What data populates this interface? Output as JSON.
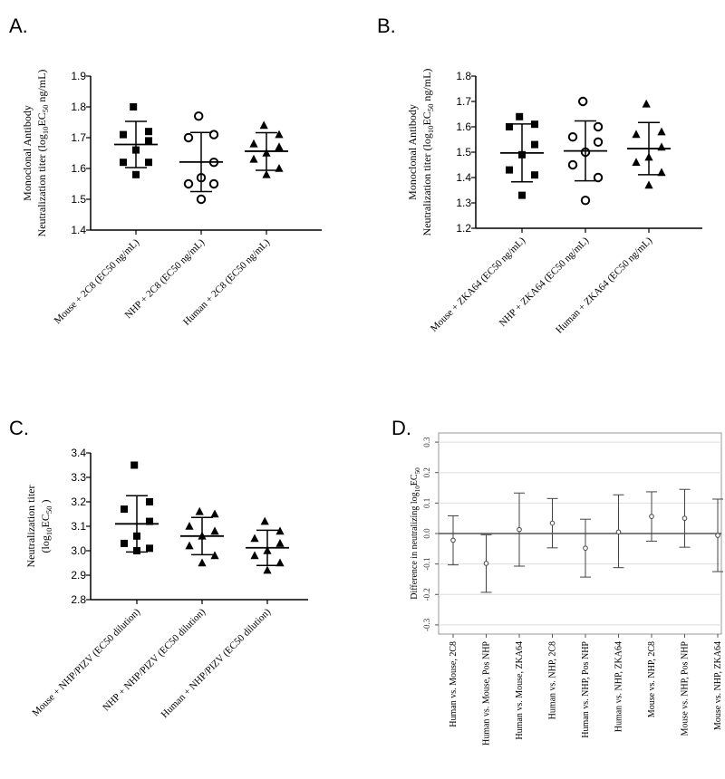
{
  "chart_data": [
    {
      "panel": "A.",
      "type": "scatter",
      "ylabel_lines": [
        "Monoclonal Antibody",
        "Neutralization titer (log10EC50 ng/mL)"
      ],
      "ylim": [
        1.4,
        1.9
      ],
      "yticks": [
        "1.4",
        "1.5",
        "1.6",
        "1.7",
        "1.8",
        "1.9"
      ],
      "categories": [
        "Mouse + 2C8 (EC50 ng/mL)",
        "NHP + 2C8 (EC50 ng/mL)",
        "Human + 2C8 (EC50 ng/mL)"
      ],
      "groups": [
        {
          "marker": "square",
          "filled": true,
          "points": [
            1.8,
            1.72,
            1.71,
            1.69,
            1.66,
            1.62,
            1.62,
            1.58
          ],
          "mean": 1.678,
          "sd_low": 1.603,
          "sd_high": 1.753
        },
        {
          "marker": "circle",
          "filled": false,
          "points": [
            1.77,
            1.71,
            1.7,
            1.62,
            1.57,
            1.55,
            1.55,
            1.5
          ],
          "mean": 1.621,
          "sd_low": 1.525,
          "sd_high": 1.717
        },
        {
          "marker": "triangle",
          "filled": true,
          "points": [
            1.74,
            1.71,
            1.68,
            1.67,
            1.65,
            1.63,
            1.6,
            1.58
          ],
          "mean": 1.656,
          "sd_low": 1.594,
          "sd_high": 1.716
        }
      ]
    },
    {
      "panel": "B.",
      "type": "scatter",
      "ylabel_lines": [
        "Monoclonal Antibody",
        "Neutralization titer (log10EC50 ng/mL)"
      ],
      "ylim": [
        1.2,
        1.8
      ],
      "yticks": [
        "1.2",
        "1.3",
        "1.4",
        "1.5",
        "1.6",
        "1.7",
        "1.8"
      ],
      "categories": [
        "Mouse + ZKA64 (EC50 ng/mL)",
        "NHP + ZKA64 (EC50 ng/mL)",
        "Human + ZKA64 (EC50 ng/mL)"
      ],
      "groups": [
        {
          "marker": "square",
          "filled": true,
          "points": [
            1.64,
            1.61,
            1.6,
            1.53,
            1.49,
            1.43,
            1.41,
            1.33
          ],
          "mean": 1.497,
          "sd_low": 1.383,
          "sd_high": 1.611
        },
        {
          "marker": "circle",
          "filled": false,
          "points": [
            1.7,
            1.6,
            1.56,
            1.54,
            1.5,
            1.45,
            1.4,
            1.31
          ],
          "mean": 1.505,
          "sd_low": 1.387,
          "sd_high": 1.623
        },
        {
          "marker": "triangle",
          "filled": true,
          "points": [
            1.69,
            1.58,
            1.57,
            1.52,
            1.48,
            1.46,
            1.42,
            1.37
          ],
          "mean": 1.514,
          "sd_low": 1.411,
          "sd_high": 1.617
        }
      ]
    },
    {
      "panel": "C.",
      "type": "scatter",
      "ylabel_lines": [
        "Neutralization titer",
        "(log10EC50 )"
      ],
      "ylim": [
        2.8,
        3.4
      ],
      "yticks": [
        "2.8",
        "2.9",
        "3.0",
        "3.1",
        "3.2",
        "3.3",
        "3.4"
      ],
      "categories": [
        "Mouse + NHP/PIZV (EC50 dilution)",
        "NHP + NHP/PIZV (EC50 dilution)",
        "Human + NHP/PIZV (EC50 dilution)"
      ],
      "groups": [
        {
          "marker": "square",
          "filled": true,
          "points": [
            3.35,
            3.2,
            3.17,
            3.12,
            3.06,
            3.03,
            3.01,
            3.0
          ],
          "mean": 3.11,
          "sd_low": 2.995,
          "sd_high": 3.225
        },
        {
          "marker": "triangle",
          "filled": true,
          "points": [
            3.16,
            3.15,
            3.1,
            3.08,
            3.06,
            3.02,
            2.98,
            2.95
          ],
          "mean": 3.06,
          "sd_low": 2.984,
          "sd_high": 3.136
        },
        {
          "marker": "triangle",
          "filled": true,
          "points": [
            3.12,
            3.08,
            3.05,
            3.03,
            3.0,
            2.98,
            2.95,
            2.92
          ],
          "mean": 3.012,
          "sd_low": 2.94,
          "sd_high": 3.084
        }
      ]
    },
    {
      "panel": "D.",
      "type": "errorbar",
      "ylabel": "Difference in neutralizing log10EC50",
      "ylim": [
        -0.3,
        0.3
      ],
      "yticks": [
        "-0.3",
        "-0.2",
        "-0.1",
        "0.0",
        "0.1",
        "0.2",
        "0.3"
      ],
      "reference_line": 0,
      "categories": [
        "Human vs. Mouse, 2C8",
        "Human vs. Mouse, Pos NHP",
        "Human vs. Mouse, ZKA64",
        "Human vs. NHP, 2C8",
        "Human vs. NHP, Pos NHP",
        "Human vs. NHP, ZKA64",
        "Mouse vs. NHP, 2C8",
        "Mouse vs. NHP, Pos NHP",
        "Mouse vs. NHP, ZKA64"
      ],
      "estimates": [
        -0.022,
        -0.098,
        0.013,
        0.034,
        -0.048,
        0.005,
        0.056,
        0.05,
        -0.006
      ],
      "lower": [
        -0.103,
        -0.193,
        -0.107,
        -0.047,
        -0.143,
        -0.112,
        -0.025,
        -0.045,
        -0.125
      ],
      "upper": [
        0.058,
        -0.004,
        0.133,
        0.115,
        0.047,
        0.127,
        0.137,
        0.145,
        0.113
      ]
    }
  ]
}
